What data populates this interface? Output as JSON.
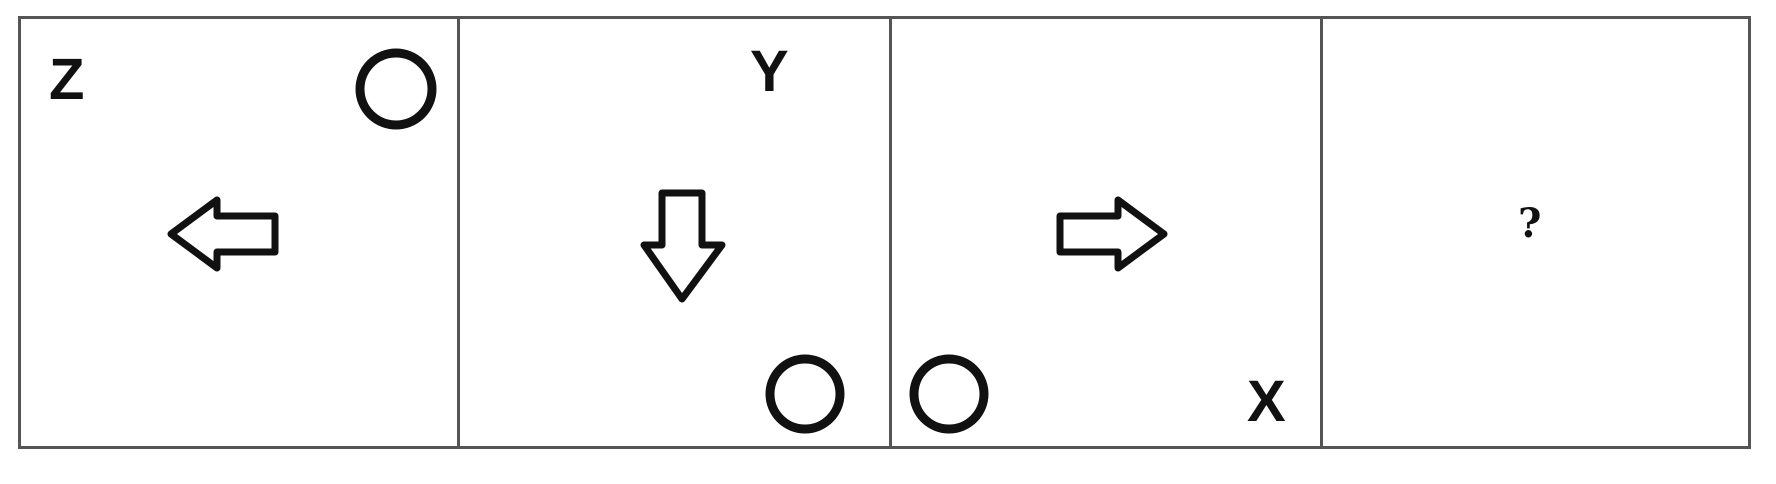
{
  "panels": [
    {
      "letter": "Z",
      "arrow": "left-arrow",
      "circle": "circle"
    },
    {
      "letter": "Y",
      "arrow": "down-arrow",
      "circle": "circle"
    },
    {
      "letter": "X",
      "arrow": "right-arrow",
      "circle": "circle"
    },
    {
      "question": "?"
    }
  ],
  "colors": {
    "stroke": "#111111",
    "border": "#555555"
  }
}
